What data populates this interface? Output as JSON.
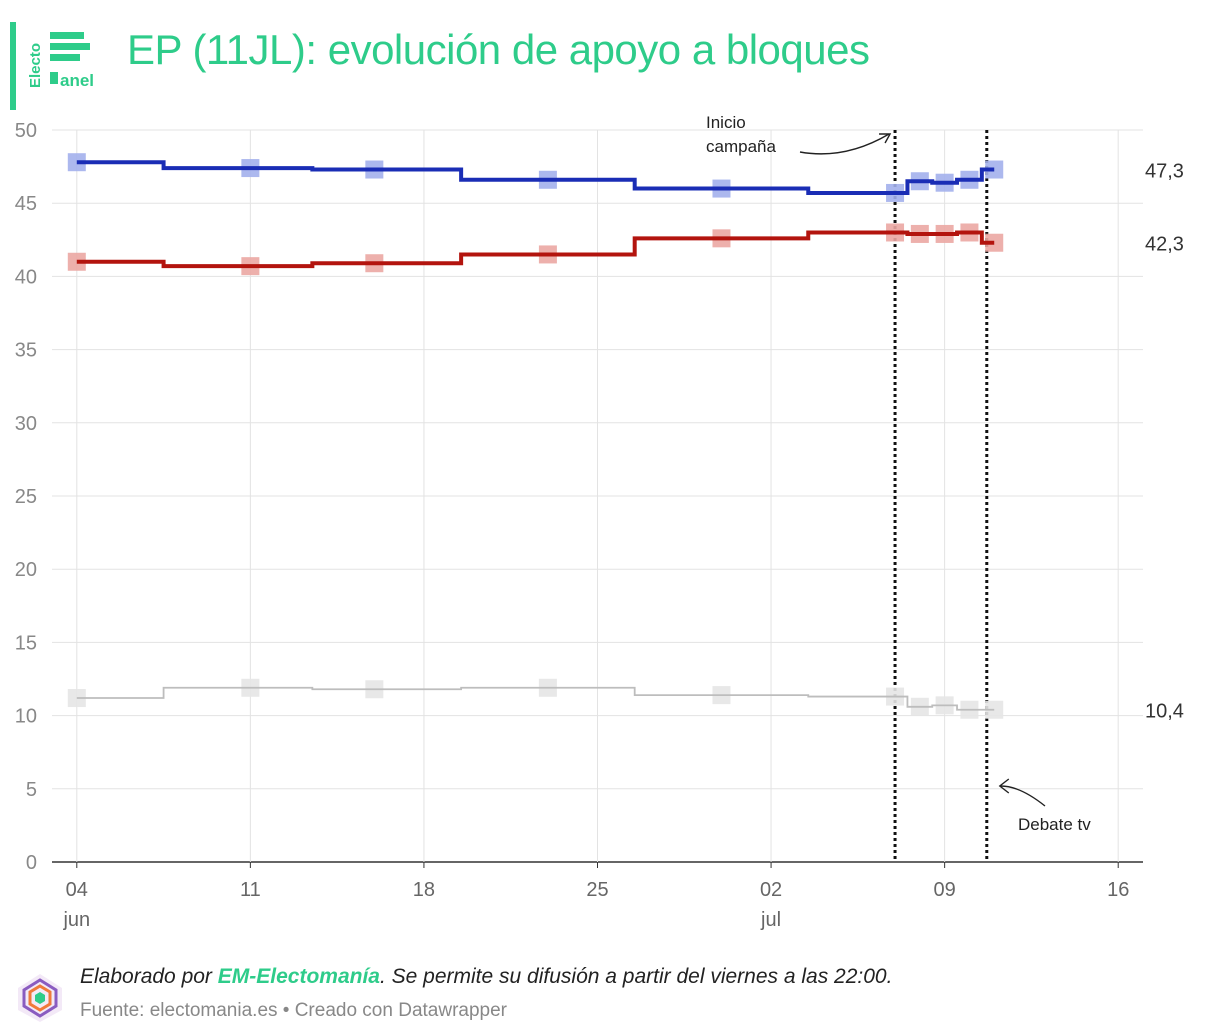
{
  "header": {
    "title": "EP (11JL): evolución de apoyo a bloques",
    "logo_text_top": "Electo",
    "logo_text_bottom": "anel",
    "accent_color": "#2ecc8a"
  },
  "chart_data": {
    "type": "line",
    "step": true,
    "ylim": [
      0,
      50
    ],
    "yticks": [
      0,
      5,
      10,
      15,
      20,
      25,
      30,
      35,
      40,
      45,
      50
    ],
    "x_range": [
      "2023-06-03",
      "2023-07-17"
    ],
    "xticks": [
      {
        "date": "2023-06-04",
        "label": "04",
        "sublabel": "jun"
      },
      {
        "date": "2023-06-11",
        "label": "11",
        "sublabel": ""
      },
      {
        "date": "2023-06-18",
        "label": "18",
        "sublabel": ""
      },
      {
        "date": "2023-06-25",
        "label": "25",
        "sublabel": ""
      },
      {
        "date": "2023-07-02",
        "label": "02",
        "sublabel": "jul"
      },
      {
        "date": "2023-07-09",
        "label": "09",
        "sublabel": ""
      },
      {
        "date": "2023-07-16",
        "label": "16",
        "sublabel": ""
      }
    ],
    "grid": true,
    "series": [
      {
        "color": "#1a2db5",
        "marker_color": "#a3b0ec",
        "end_label": "47,3",
        "points": [
          {
            "x": "2023-06-04",
            "y": 47.8
          },
          {
            "x": "2023-06-11",
            "y": 47.4
          },
          {
            "x": "2023-06-16",
            "y": 47.3
          },
          {
            "x": "2023-06-23",
            "y": 46.6
          },
          {
            "x": "2023-06-30",
            "y": 46.0
          },
          {
            "x": "2023-07-07",
            "y": 45.7
          },
          {
            "x": "2023-07-08",
            "y": 46.5
          },
          {
            "x": "2023-07-09",
            "y": 46.4
          },
          {
            "x": "2023-07-10",
            "y": 46.6
          },
          {
            "x": "2023-07-11",
            "y": 47.3
          }
        ],
        "steps": [
          {
            "from": "2023-06-04",
            "to": "2023-06-07.5",
            "y": 47.8
          },
          {
            "from": "2023-06-07.5",
            "to": "2023-06-13.5",
            "y": 47.4
          },
          {
            "from": "2023-06-13.5",
            "to": "2023-06-19.5",
            "y": 47.3
          },
          {
            "from": "2023-06-19.5",
            "to": "2023-06-26.5",
            "y": 46.6
          },
          {
            "from": "2023-06-26.5",
            "to": "2023-07-03.5",
            "y": 46.0
          },
          {
            "from": "2023-07-03.5",
            "to": "2023-07-07.5",
            "y": 45.7
          },
          {
            "from": "2023-07-07.5",
            "to": "2023-07-08.5",
            "y": 46.5
          },
          {
            "from": "2023-07-08.5",
            "to": "2023-07-09.5",
            "y": 46.4
          },
          {
            "from": "2023-07-09.5",
            "to": "2023-07-10.5",
            "y": 46.6
          },
          {
            "from": "2023-07-10.5",
            "to": "2023-07-11",
            "y": 47.3
          }
        ]
      },
      {
        "color": "#b3140e",
        "marker_color": "#eba7a3",
        "end_label": "42,3",
        "points": [
          {
            "x": "2023-06-04",
            "y": 41.0
          },
          {
            "x": "2023-06-11",
            "y": 40.7
          },
          {
            "x": "2023-06-16",
            "y": 40.9
          },
          {
            "x": "2023-06-23",
            "y": 41.5
          },
          {
            "x": "2023-06-30",
            "y": 42.6
          },
          {
            "x": "2023-07-07",
            "y": 43.0
          },
          {
            "x": "2023-07-08",
            "y": 42.9
          },
          {
            "x": "2023-07-09",
            "y": 42.9
          },
          {
            "x": "2023-07-10",
            "y": 43.0
          },
          {
            "x": "2023-07-11",
            "y": 42.3
          }
        ],
        "steps": [
          {
            "from": "2023-06-04",
            "to": "2023-06-07.5",
            "y": 41.0
          },
          {
            "from": "2023-06-07.5",
            "to": "2023-06-13.5",
            "y": 40.7
          },
          {
            "from": "2023-06-13.5",
            "to": "2023-06-19.5",
            "y": 40.9
          },
          {
            "from": "2023-06-19.5",
            "to": "2023-06-26.5",
            "y": 41.5
          },
          {
            "from": "2023-06-26.5",
            "to": "2023-07-03.5",
            "y": 42.6
          },
          {
            "from": "2023-07-03.5",
            "to": "2023-07-07.5",
            "y": 43.0
          },
          {
            "from": "2023-07-07.5",
            "to": "2023-07-08.5",
            "y": 42.9
          },
          {
            "from": "2023-07-08.5",
            "to": "2023-07-09.5",
            "y": 42.9
          },
          {
            "from": "2023-07-09.5",
            "to": "2023-07-10.5",
            "y": 43.0
          },
          {
            "from": "2023-07-10.5",
            "to": "2023-07-11",
            "y": 42.3
          }
        ]
      },
      {
        "color": "#bdbdbd",
        "marker_color": "#e6e6e6",
        "end_label": "10,4",
        "points": [
          {
            "x": "2023-06-04",
            "y": 11.2
          },
          {
            "x": "2023-06-11",
            "y": 11.9
          },
          {
            "x": "2023-06-16",
            "y": 11.8
          },
          {
            "x": "2023-06-23",
            "y": 11.9
          },
          {
            "x": "2023-06-30",
            "y": 11.4
          },
          {
            "x": "2023-07-07",
            "y": 11.3
          },
          {
            "x": "2023-07-08",
            "y": 10.6
          },
          {
            "x": "2023-07-09",
            "y": 10.7
          },
          {
            "x": "2023-07-10",
            "y": 10.4
          },
          {
            "x": "2023-07-11",
            "y": 10.4
          }
        ],
        "steps": [
          {
            "from": "2023-06-04",
            "to": "2023-06-07.5",
            "y": 11.2
          },
          {
            "from": "2023-06-07.5",
            "to": "2023-06-13.5",
            "y": 11.9
          },
          {
            "from": "2023-06-13.5",
            "to": "2023-06-19.5",
            "y": 11.8
          },
          {
            "from": "2023-06-19.5",
            "to": "2023-06-26.5",
            "y": 11.9
          },
          {
            "from": "2023-06-26.5",
            "to": "2023-07-03.5",
            "y": 11.4
          },
          {
            "from": "2023-07-03.5",
            "to": "2023-07-07.5",
            "y": 11.3
          },
          {
            "from": "2023-07-07.5",
            "to": "2023-07-08.5",
            "y": 10.6
          },
          {
            "from": "2023-07-08.5",
            "to": "2023-07-09.5",
            "y": 10.7
          },
          {
            "from": "2023-07-09.5",
            "to": "2023-07-10.5",
            "y": 10.4
          },
          {
            "from": "2023-07-10.5",
            "to": "2023-07-11",
            "y": 10.4
          }
        ]
      }
    ],
    "annotations": [
      {
        "name": "campaign",
        "date": "2023-07-07",
        "label_lines": [
          "Inicio",
          "campaña"
        ]
      },
      {
        "name": "debate",
        "date": "2023-07-10.7",
        "label_lines": [
          "Debate tv"
        ]
      }
    ]
  },
  "footer": {
    "prefix": "Elaborado por ",
    "brand": "EM-Electomanía",
    "suffix": ". Se permite su difusión a partir del viernes a las 22:00.",
    "source": "Fuente: electomania.es • Creado con Datawrapper"
  }
}
